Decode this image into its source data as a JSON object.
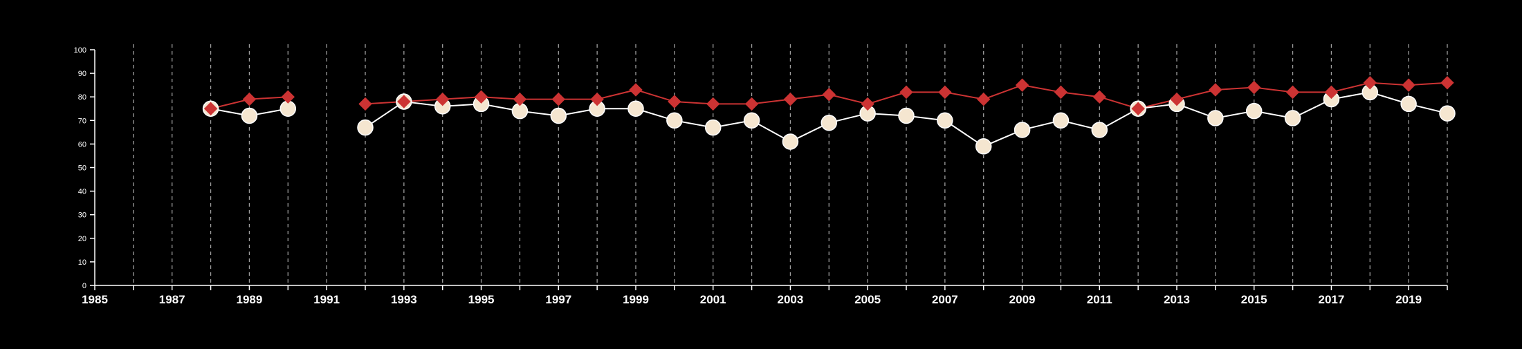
{
  "chart_data": {
    "type": "line",
    "title": "",
    "xlabel": "",
    "ylabel": "",
    "xlim": [
      1985,
      2020
    ],
    "ylim": [
      0,
      100
    ],
    "x_ticks": [
      1985,
      1987,
      1989,
      1991,
      1993,
      1995,
      1997,
      1999,
      2001,
      2003,
      2005,
      2007,
      2009,
      2011,
      2013,
      2015,
      2017,
      2019
    ],
    "x_tick_labels": [
      "1985",
      "1987",
      "1989",
      "1991",
      "1993",
      "1995",
      "1997",
      "1999",
      "2001",
      "2003",
      "2005",
      "2007",
      "2009",
      "2011",
      "2013",
      "2015",
      "2017",
      "2019"
    ],
    "y_ticks": [
      0,
      10,
      20,
      30,
      40,
      50,
      60,
      70,
      80,
      90,
      100
    ],
    "y_tick_labels": [
      "0",
      "10",
      "20",
      "30",
      "40",
      "50",
      "60",
      "70",
      "80",
      "90",
      "100"
    ],
    "vertical_grid": "dashed, one line per year",
    "legend": "none",
    "series": [
      {
        "marker": "diamond",
        "color": "#cc3333",
        "points": [
          [
            1988,
            75
          ],
          [
            1989,
            79
          ],
          [
            1990,
            80
          ],
          [
            1992,
            77
          ],
          [
            1993,
            78
          ],
          [
            1994,
            79
          ],
          [
            1995,
            80
          ],
          [
            1996,
            79
          ],
          [
            1997,
            79
          ],
          [
            1998,
            79
          ],
          [
            1999,
            83
          ],
          [
            2000,
            78
          ],
          [
            2001,
            77
          ],
          [
            2002,
            77
          ],
          [
            2003,
            79
          ],
          [
            2004,
            81
          ],
          [
            2005,
            77
          ],
          [
            2006,
            82
          ],
          [
            2007,
            82
          ],
          [
            2008,
            79
          ],
          [
            2009,
            85
          ],
          [
            2010,
            82
          ],
          [
            2011,
            80
          ],
          [
            2012,
            75
          ],
          [
            2013,
            79
          ],
          [
            2014,
            83
          ],
          [
            2015,
            84
          ],
          [
            2016,
            82
          ],
          [
            2017,
            82
          ],
          [
            2018,
            86
          ],
          [
            2019,
            85
          ],
          [
            2020,
            86
          ]
        ]
      },
      {
        "marker": "circle",
        "color": "#f5e6d0",
        "points": [
          [
            1988,
            75
          ],
          [
            1989,
            72
          ],
          [
            1990,
            75
          ],
          [
            1992,
            67
          ],
          [
            1993,
            78
          ],
          [
            1994,
            76
          ],
          [
            1995,
            77
          ],
          [
            1996,
            74
          ],
          [
            1997,
            72
          ],
          [
            1998,
            75
          ],
          [
            1999,
            75
          ],
          [
            2000,
            70
          ],
          [
            2001,
            67
          ],
          [
            2002,
            70
          ],
          [
            2003,
            61
          ],
          [
            2004,
            69
          ],
          [
            2005,
            73
          ],
          [
            2006,
            72
          ],
          [
            2007,
            70
          ],
          [
            2008,
            59
          ],
          [
            2009,
            66
          ],
          [
            2010,
            70
          ],
          [
            2011,
            66
          ],
          [
            2012,
            75
          ],
          [
            2013,
            77
          ],
          [
            2014,
            71
          ],
          [
            2015,
            74
          ],
          [
            2016,
            71
          ],
          [
            2017,
            79
          ],
          [
            2018,
            82
          ],
          [
            2019,
            77
          ],
          [
            2020,
            73
          ]
        ]
      }
    ]
  },
  "colors": {
    "background": "#000000",
    "axis": "#ffffff",
    "grid": "#bbbbbb"
  }
}
